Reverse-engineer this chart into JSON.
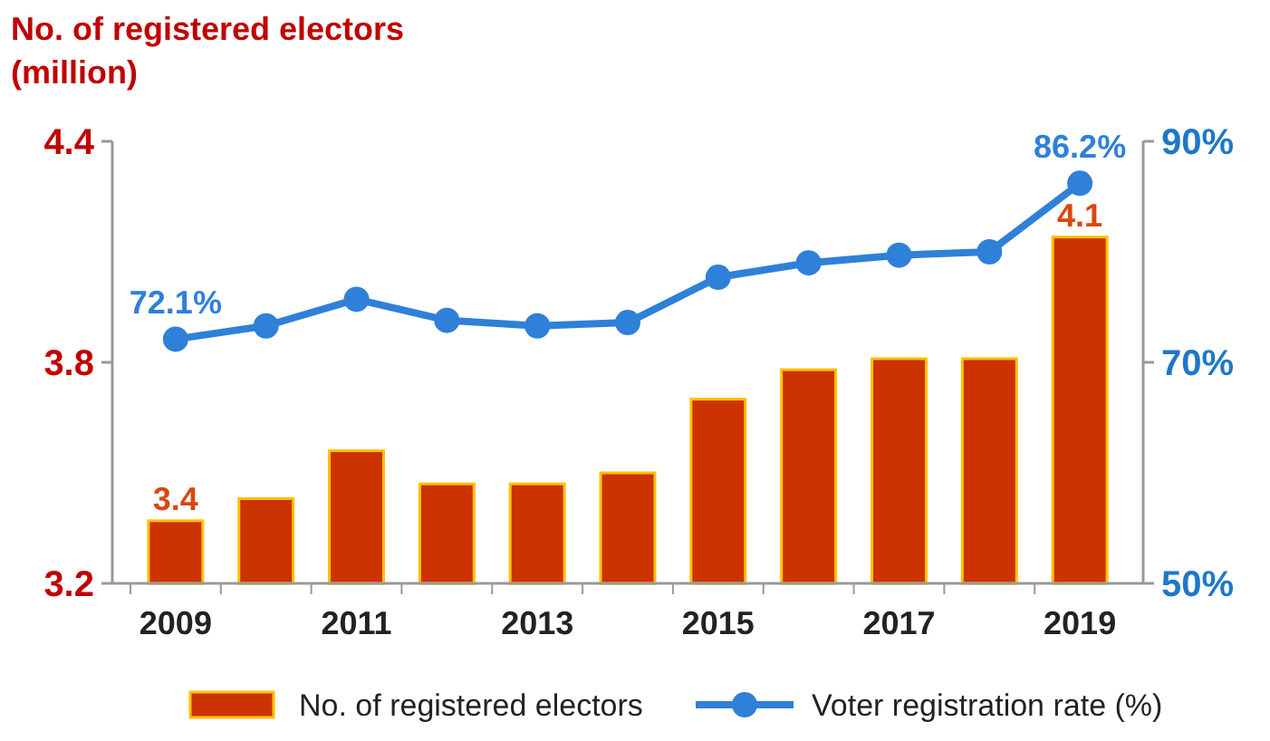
{
  "chart_data": {
    "type": "bar",
    "ylabel": "No. of registered electors\n(million)",
    "categories": [
      "2009",
      null,
      "2011",
      null,
      "2013",
      null,
      "2015",
      null,
      "2017",
      null,
      "2019"
    ],
    "series": [
      {
        "name": "No. of registered electors",
        "color": "#cc3300",
        "values": [
          3.37,
          3.43,
          3.56,
          3.47,
          3.47,
          3.5,
          3.7,
          3.78,
          3.81,
          3.81,
          4.14
        ],
        "value_labels": [
          "3.4",
          null,
          null,
          null,
          null,
          null,
          null,
          null,
          null,
          null,
          "4.1"
        ]
      },
      {
        "name": "Voter registration rate (%)",
        "type": "line",
        "axis": "y2",
        "color": "#2f80d8",
        "values": [
          72.1,
          73.3,
          75.7,
          73.8,
          73.3,
          73.6,
          77.7,
          79.0,
          79.7,
          80.0,
          86.2
        ],
        "value_labels": [
          "72.1%",
          null,
          null,
          null,
          null,
          null,
          null,
          null,
          null,
          null,
          "86.2%"
        ]
      }
    ],
    "ylim": [
      3.2,
      4.4
    ],
    "yticks": [
      3.2,
      3.8,
      4.4
    ],
    "y2lim": [
      50,
      90
    ],
    "y2ticks": [
      {
        "value": 50,
        "label": "50%"
      },
      {
        "value": 70,
        "label": "70%"
      },
      {
        "value": 90,
        "label": "90%"
      }
    ],
    "grid": false,
    "legend": "bottom",
    "marker": "circle"
  }
}
